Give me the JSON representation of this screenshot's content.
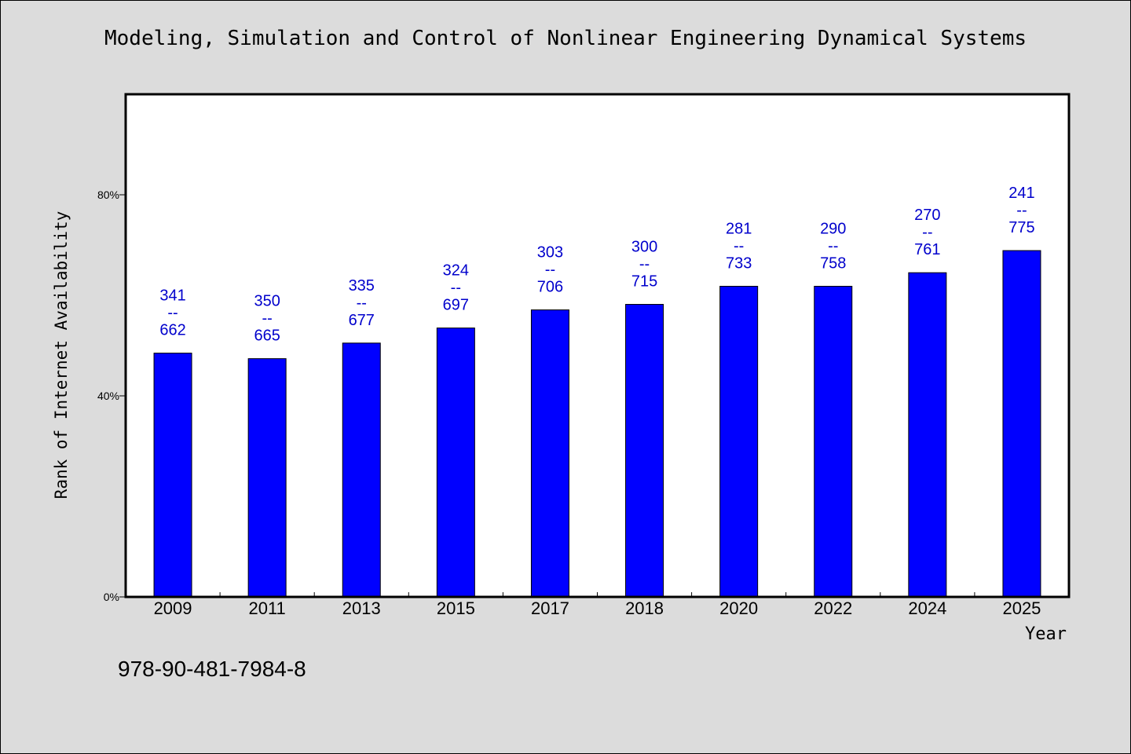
{
  "title": "Modeling, Simulation and Control of Nonlinear Engineering Dynamical Systems",
  "isbn": "978-90-481-7984-8",
  "chart_data": {
    "type": "bar",
    "title": "Modeling, Simulation and Control of Nonlinear Engineering Dynamical Systems",
    "xlabel": "Year",
    "ylabel": "Rank of Internet Availability",
    "ylim": [
      0,
      100
    ],
    "yticks": [
      {
        "value": 0,
        "label": "0%"
      },
      {
        "value": 40,
        "label": "40%"
      },
      {
        "value": 80,
        "label": "80%"
      }
    ],
    "grid": false,
    "legend": "none",
    "bar_color": "#0000ff",
    "label_color": "#0000cc",
    "categories": [
      "2009",
      "2011",
      "2013",
      "2015",
      "2017",
      "2018",
      "2020",
      "2022",
      "2024",
      "2025"
    ],
    "values": [
      48.5,
      47.4,
      50.5,
      53.5,
      57.1,
      58.2,
      61.8,
      61.8,
      64.5,
      68.9
    ],
    "labels_top": [
      "341",
      "350",
      "335",
      "324",
      "303",
      "300",
      "281",
      "290",
      "270",
      "241"
    ],
    "labels_sep": "--",
    "labels_bottom": [
      "662",
      "665",
      "677",
      "697",
      "706",
      "715",
      "733",
      "758",
      "761",
      "775"
    ]
  }
}
